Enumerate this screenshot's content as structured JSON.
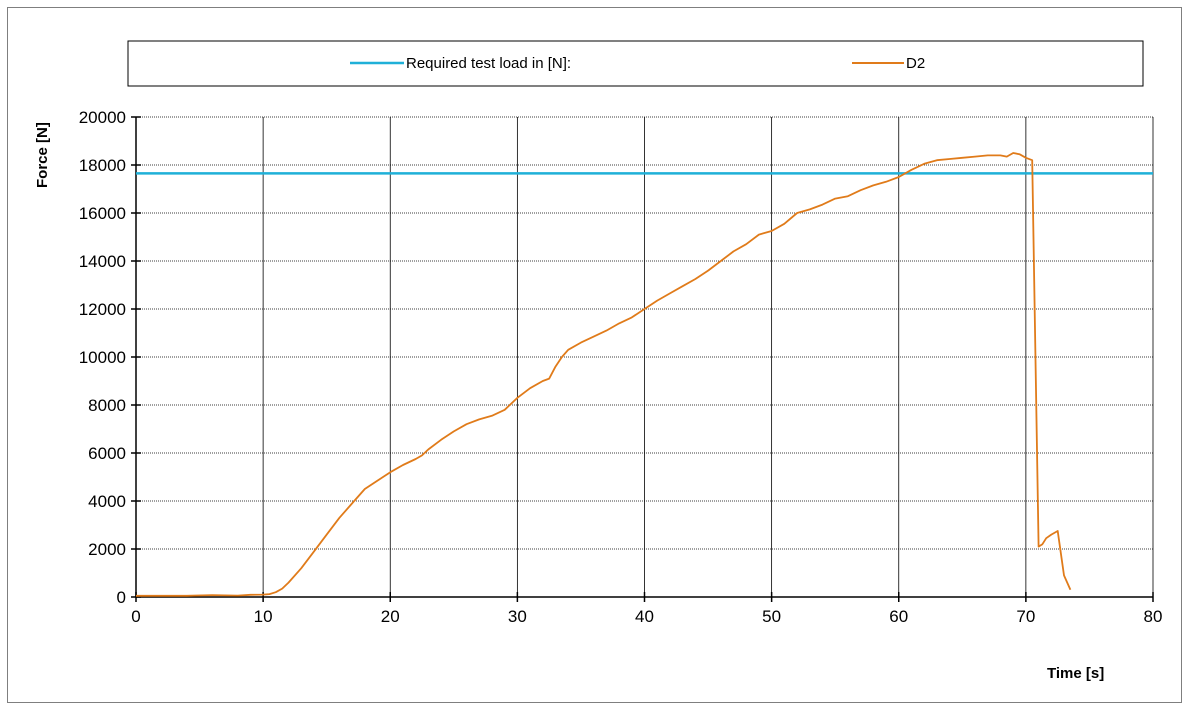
{
  "chart_data": {
    "type": "line",
    "title": "",
    "xlabel": "Time [s]",
    "ylabel": "Force [N]",
    "xlim": [
      0,
      80
    ],
    "ylim": [
      0,
      20000
    ],
    "x_ticks": [
      0,
      10,
      20,
      30,
      40,
      50,
      60,
      70,
      80
    ],
    "y_ticks": [
      0,
      2000,
      4000,
      6000,
      8000,
      10000,
      12000,
      14000,
      16000,
      18000,
      20000
    ],
    "grid": true,
    "legend_position": "top",
    "series": [
      {
        "name": "Required test load in [N]:",
        "color": "#1fb0d8",
        "x": [
          0,
          80
        ],
        "y": [
          17650,
          17650
        ]
      },
      {
        "name": "D2",
        "color": "#e07b1a",
        "x": [
          0,
          4,
          6,
          8,
          9,
          10,
          10.5,
          11,
          11.5,
          12,
          13,
          14,
          15,
          16,
          17,
          18,
          19,
          20,
          21,
          22,
          22.5,
          23,
          24,
          25,
          26,
          27,
          28,
          29,
          30,
          31,
          32,
          32.5,
          33,
          33.5,
          34,
          35,
          36,
          37,
          38,
          39,
          40,
          41,
          42,
          43,
          44,
          45,
          46,
          47,
          48,
          49,
          50,
          51,
          52,
          53,
          54,
          55,
          56,
          57,
          58,
          59,
          60,
          61,
          62,
          63,
          64,
          65,
          66,
          67,
          68,
          68.5,
          69,
          69.5,
          70,
          70.5,
          71,
          71.3,
          71.6,
          72,
          72.5,
          73,
          73.5
        ],
        "y": [
          50,
          50,
          80,
          60,
          90,
          100,
          120,
          200,
          350,
          600,
          1200,
          1900,
          2600,
          3300,
          3900,
          4500,
          4850,
          5200,
          5500,
          5750,
          5900,
          6150,
          6550,
          6900,
          7200,
          7400,
          7550,
          7800,
          8300,
          8700,
          9000,
          9100,
          9600,
          10000,
          10300,
          10600,
          10850,
          11100,
          11400,
          11650,
          12000,
          12350,
          12650,
          12950,
          13250,
          13600,
          14000,
          14400,
          14700,
          15100,
          15250,
          15550,
          16000,
          16150,
          16350,
          16600,
          16700,
          16950,
          17150,
          17300,
          17500,
          17800,
          18050,
          18200,
          18250,
          18300,
          18350,
          18400,
          18400,
          18350,
          18500,
          18450,
          18300,
          18200,
          2100,
          2200,
          2450,
          2600,
          2750,
          900,
          300
        ]
      }
    ]
  }
}
